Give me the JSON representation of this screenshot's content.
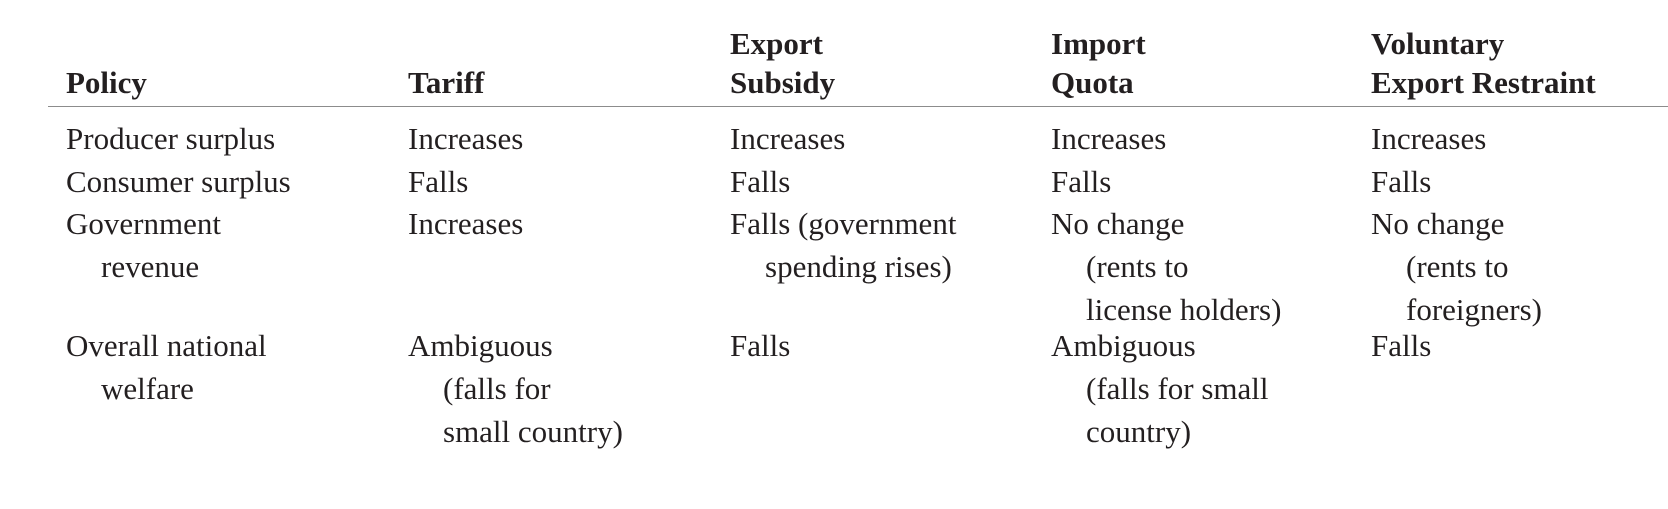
{
  "table": {
    "headers": [
      [
        "Policy"
      ],
      [
        "Tariff"
      ],
      [
        "Export",
        "Subsidy"
      ],
      [
        "Import",
        "Quota"
      ],
      [
        "Voluntary",
        "Export Restraint"
      ]
    ],
    "rows": [
      {
        "cells": [
          [
            "Producer surplus"
          ],
          [
            "Increases"
          ],
          [
            "Increases"
          ],
          [
            "Increases"
          ],
          [
            "Increases"
          ]
        ]
      },
      {
        "cells": [
          [
            "Consumer surplus"
          ],
          [
            "Falls"
          ],
          [
            "Falls"
          ],
          [
            "Falls"
          ],
          [
            "Falls"
          ]
        ]
      },
      {
        "cells": [
          [
            "Government",
            "revenue"
          ],
          [
            "Increases"
          ],
          [
            "Falls (government",
            "spending rises)"
          ],
          [
            "No change",
            "(rents to",
            "license holders)"
          ],
          [
            "No change",
            "(rents to",
            "foreigners)"
          ]
        ]
      },
      {
        "cells": [
          [
            "Overall national",
            "welfare"
          ],
          [
            "Ambiguous",
            "(falls for",
            "small country)"
          ],
          [
            "Falls"
          ],
          [
            "Ambiguous",
            "(falls for small",
            "country)"
          ],
          [
            "Falls"
          ]
        ]
      }
    ]
  }
}
